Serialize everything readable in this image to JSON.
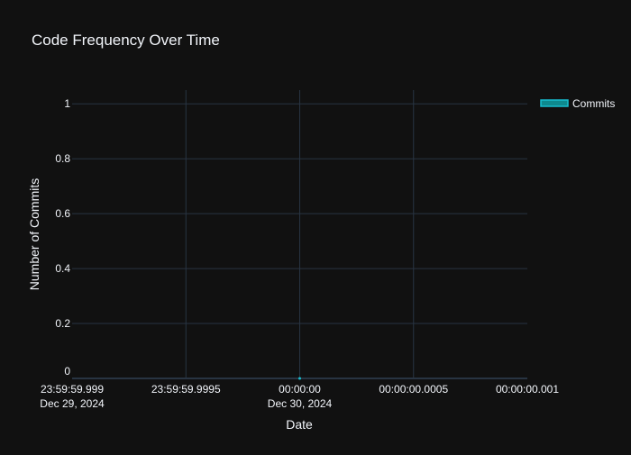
{
  "chart_data": {
    "type": "area",
    "title": "Code Frequency Over Time",
    "xlabel": "Date",
    "ylabel": "Number of Commits",
    "x_ticks": [
      {
        "time": "23:59:59.999",
        "date": "Dec 29, 2024",
        "offset_ms": -1
      },
      {
        "time": "23:59:59.9995",
        "date": "",
        "offset_ms": -0.5
      },
      {
        "time": "00:00:00",
        "date": "Dec 30, 2024",
        "offset_ms": 0
      },
      {
        "time": "00:00:00.0005",
        "date": "",
        "offset_ms": 0.5
      },
      {
        "time": "00:00:00.001",
        "date": "",
        "offset_ms": 1
      }
    ],
    "xlim": [
      "2024-12-29 23:59:59.999",
      "2024-12-30 00:00:00.001"
    ],
    "y_ticks": [
      "0",
      "0.2",
      "0.4",
      "0.6",
      "0.8",
      "1"
    ],
    "ylim": [
      0,
      1.05
    ],
    "grid": true,
    "legend_position": "top-right",
    "series": [
      {
        "name": "Commits",
        "color": "#17becf",
        "x": [
          "2024-12-30 00:00:00"
        ],
        "y": [
          0
        ]
      }
    ],
    "colors": {
      "background": "#111111",
      "grid": "#283442",
      "text": "#f2f5fa"
    }
  }
}
